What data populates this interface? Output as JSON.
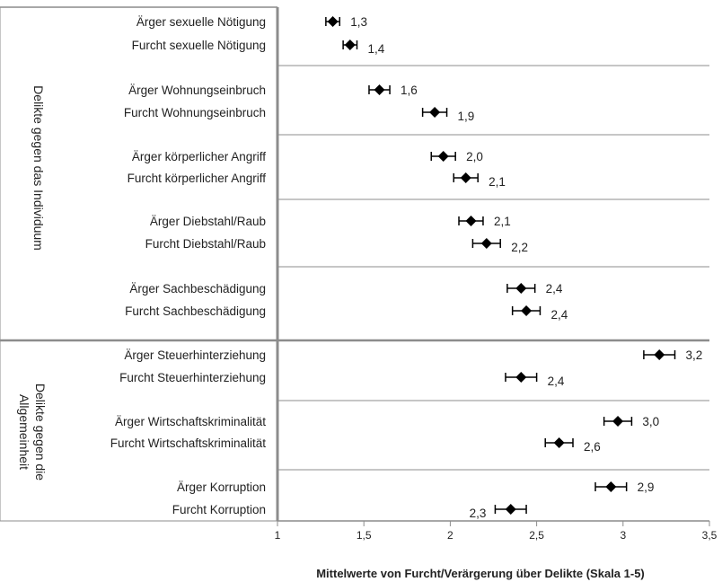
{
  "chart_data": {
    "type": "dot",
    "title": "",
    "xlabel": "Mittelwerte  von Furcht/Verärgerung über Delikte (Skala 1-5)",
    "ylabel": "",
    "xlim": [
      1,
      3.5
    ],
    "xticks": [
      {
        "value": 1,
        "label": "1"
      },
      {
        "value": 1.5,
        "label": "1,5"
      },
      {
        "value": 2,
        "label": "2"
      },
      {
        "value": 2.5,
        "label": "2,5"
      },
      {
        "value": 3,
        "label": "3"
      },
      {
        "value": 3.5,
        "label": "3,5"
      }
    ],
    "groups": [
      {
        "label": "Delikte gegen das Individuum",
        "row_start": 0,
        "row_end": 9
      },
      {
        "label": "Delikte gegen die Allgemeinheit",
        "label_lines": [
          "Delikte gegen die",
          "Allgemeinheit"
        ],
        "row_start": 10,
        "row_end": 15
      }
    ],
    "rows": [
      {
        "category": "Ärger sexuelle Nötigung",
        "value": 1.32,
        "err": 0.04,
        "label": "1,3"
      },
      {
        "category": "Furcht sexuelle Nötigung",
        "value": 1.42,
        "err": 0.04,
        "label": "1,4"
      },
      {
        "category": "Ärger Wohnungseinbruch",
        "value": 1.59,
        "err": 0.06,
        "label": "1,6"
      },
      {
        "category": "Furcht Wohnungseinbruch",
        "value": 1.91,
        "err": 0.07,
        "label": "1,9"
      },
      {
        "category": "Ärger körperlicher Angriff",
        "value": 1.96,
        "err": 0.07,
        "label": "2,0"
      },
      {
        "category": "Furcht körperlicher Angriff",
        "value": 2.09,
        "err": 0.07,
        "label": "2,1"
      },
      {
        "category": "Ärger Diebstahl/Raub",
        "value": 2.12,
        "err": 0.07,
        "label": "2,1"
      },
      {
        "category": "Furcht Diebstahl/Raub",
        "value": 2.21,
        "err": 0.08,
        "label": "2,2"
      },
      {
        "category": "Ärger Sachbeschädigung",
        "value": 2.41,
        "err": 0.08,
        "label": "2,4"
      },
      {
        "category": "Furcht Sachbeschädigung",
        "value": 2.44,
        "err": 0.08,
        "label": "2,4"
      },
      {
        "category": "Ärger Steuerhinterziehung",
        "value": 3.21,
        "err": 0.09,
        "label": "3,2"
      },
      {
        "category": "Furcht Steuerhinterziehung",
        "value": 2.41,
        "err": 0.09,
        "label": "2,4"
      },
      {
        "category": "Ärger Wirtschaftskriminalität",
        "value": 2.97,
        "err": 0.08,
        "label": "3,0"
      },
      {
        "category": "Furcht Wirtschaftskriminalität",
        "value": 2.63,
        "err": 0.08,
        "label": "2,6"
      },
      {
        "category": "Ärger Korruption",
        "value": 2.93,
        "err": 0.09,
        "label": "2,9"
      },
      {
        "category": "Furcht Korruption",
        "value": 2.35,
        "err": 0.09,
        "label": "2,3",
        "label_side": "left"
      }
    ],
    "separators_after_rows": [
      1,
      3,
      5,
      7,
      11,
      13
    ],
    "group_separator_after_row": 9,
    "grid": false,
    "legend": "none",
    "marker": "diamond",
    "colors": {
      "marker": "#000000",
      "axis": "#808080",
      "separator": "#8c8c8c"
    }
  }
}
